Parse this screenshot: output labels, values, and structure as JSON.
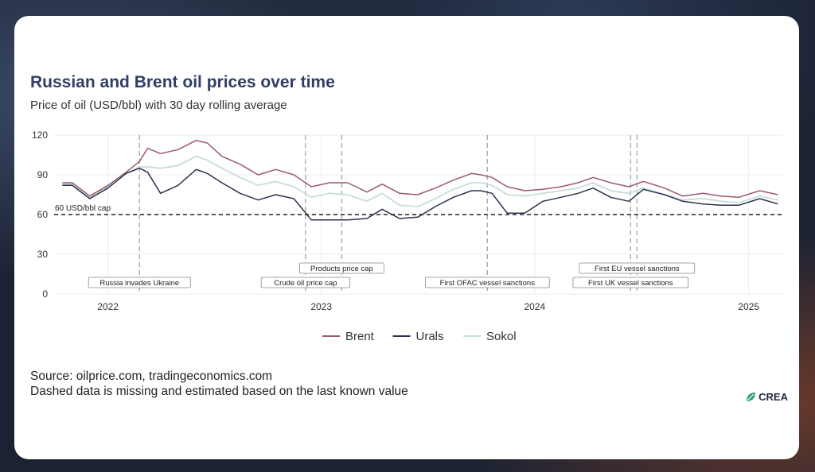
{
  "chart_data": {
    "type": "line",
    "title": "Russian and Brent oil prices over time",
    "subtitle": "Price of oil (USD/bbl) with 30 day rolling average",
    "xlabel": "",
    "ylabel": "",
    "ylim": [
      0,
      120
    ],
    "xlim": [
      "2021-10-01",
      "2025-03-01"
    ],
    "yticks": [
      0,
      30,
      60,
      90,
      120
    ],
    "xticks": [
      {
        "date": "2022-01-01",
        "label": "2022"
      },
      {
        "date": "2023-01-01",
        "label": "2023"
      },
      {
        "date": "2024-01-01",
        "label": "2024"
      },
      {
        "date": "2025-01-01",
        "label": "2025"
      }
    ],
    "grid": true,
    "legend_position": "bottom",
    "reference_line": {
      "value": 60,
      "label": "60 USD/bbl cap"
    },
    "events": [
      {
        "date": "2022-02-24",
        "label": "Russia invades Ukraine",
        "row": 2
      },
      {
        "date": "2022-12-05",
        "label": "Crude oil price cap",
        "row": 2
      },
      {
        "date": "2023-02-05",
        "label": "Products price cap",
        "row": 1
      },
      {
        "date": "2023-10-12",
        "label": "First OFAC vessel sanctions",
        "row": 2
      },
      {
        "date": "2024-06-13",
        "label": "First UK vessel sanctions",
        "row": 2
      },
      {
        "date": "2024-06-24",
        "label": "First EU vessel sanctions",
        "row": 1
      }
    ],
    "series": [
      {
        "name": "Brent",
        "color": "#9b5a6b",
        "x": [
          "2021-10-15",
          "2021-11-01",
          "2021-12-01",
          "2022-01-01",
          "2022-02-01",
          "2022-02-24",
          "2022-03-10",
          "2022-04-01",
          "2022-05-01",
          "2022-06-01",
          "2022-06-20",
          "2022-07-15",
          "2022-08-15",
          "2022-09-15",
          "2022-10-15",
          "2022-11-15",
          "2022-12-15",
          "2023-01-15",
          "2023-02-15",
          "2023-03-20",
          "2023-04-15",
          "2023-05-15",
          "2023-06-15",
          "2023-07-15",
          "2023-08-15",
          "2023-09-15",
          "2023-10-01",
          "2023-10-20",
          "2023-11-15",
          "2023-12-15",
          "2024-01-15",
          "2024-02-15",
          "2024-03-15",
          "2024-04-10",
          "2024-05-10",
          "2024-06-10",
          "2024-07-05",
          "2024-08-10",
          "2024-09-10",
          "2024-10-15",
          "2024-11-15",
          "2024-12-15",
          "2025-01-20",
          "2025-02-20"
        ],
        "values": [
          84,
          84,
          74,
          82,
          92,
          100,
          110,
          106,
          109,
          116,
          114,
          104,
          98,
          90,
          94,
          90,
          81,
          84,
          84,
          77,
          83,
          76,
          75,
          80,
          86,
          91,
          90,
          88,
          81,
          78,
          79,
          81,
          84,
          88,
          84,
          81,
          85,
          80,
          74,
          76,
          74,
          73,
          78,
          75
        ]
      },
      {
        "name": "Urals",
        "color": "#2a3350",
        "x": [
          "2021-10-15",
          "2021-11-01",
          "2021-12-01",
          "2022-01-01",
          "2022-02-01",
          "2022-02-24",
          "2022-03-10",
          "2022-04-01",
          "2022-05-01",
          "2022-06-01",
          "2022-06-20",
          "2022-07-15",
          "2022-08-15",
          "2022-09-15",
          "2022-10-15",
          "2022-11-15",
          "2022-12-15",
          "2023-01-15",
          "2023-02-15",
          "2023-03-20",
          "2023-04-15",
          "2023-05-15",
          "2023-06-15",
          "2023-07-15",
          "2023-08-15",
          "2023-09-15",
          "2023-10-01",
          "2023-10-20",
          "2023-11-15",
          "2023-12-15",
          "2024-01-15",
          "2024-02-15",
          "2024-03-15",
          "2024-04-10",
          "2024-05-10",
          "2024-06-10",
          "2024-07-05",
          "2024-08-10",
          "2024-09-10",
          "2024-10-15",
          "2024-11-15",
          "2024-12-15",
          "2025-01-20",
          "2025-02-20"
        ],
        "values": [
          82,
          82,
          72,
          80,
          91,
          95,
          92,
          76,
          82,
          94,
          91,
          84,
          76,
          71,
          75,
          72,
          56,
          56,
          56,
          57,
          64,
          57,
          58,
          66,
          73,
          78,
          78,
          76,
          61,
          61,
          70,
          73,
          76,
          80,
          73,
          70,
          79,
          75,
          70,
          68,
          67,
          67,
          72,
          68
        ]
      },
      {
        "name": "Sokol",
        "color": "#c7dedd",
        "x": [
          "2021-10-15",
          "2021-11-01",
          "2021-12-01",
          "2022-01-01",
          "2022-02-01",
          "2022-02-24",
          "2022-03-10",
          "2022-04-01",
          "2022-05-01",
          "2022-06-01",
          "2022-06-20",
          "2022-07-15",
          "2022-08-15",
          "2022-09-15",
          "2022-10-15",
          "2022-11-15",
          "2022-12-15",
          "2023-01-15",
          "2023-02-15",
          "2023-03-20",
          "2023-04-15",
          "2023-05-15",
          "2023-06-15",
          "2023-07-15",
          "2023-08-15",
          "2023-09-15",
          "2023-10-01",
          "2023-10-20",
          "2023-11-15",
          "2023-12-15",
          "2024-01-15",
          "2024-02-15",
          "2024-03-15",
          "2024-04-10",
          "2024-05-10",
          "2024-06-10",
          "2024-07-05",
          "2024-08-10",
          "2024-09-10",
          "2024-10-15",
          "2024-11-15",
          "2024-12-15",
          "2025-01-20",
          "2025-02-20"
        ],
        "values": [
          83,
          83,
          73,
          81,
          91,
          96,
          96,
          95,
          97,
          104,
          101,
          95,
          88,
          82,
          85,
          81,
          73,
          76,
          75,
          70,
          76,
          67,
          66,
          72,
          79,
          84,
          84,
          82,
          75,
          74,
          76,
          78,
          80,
          84,
          78,
          76,
          80,
          75,
          71,
          72,
          70,
          69,
          74,
          71
        ]
      }
    ]
  },
  "footer": {
    "source": "Source: oilprice.com, tradingeconomics.com",
    "note": "Dashed data is missing and estimated based on the last known value"
  },
  "brand": {
    "logo_text": "CREA"
  }
}
